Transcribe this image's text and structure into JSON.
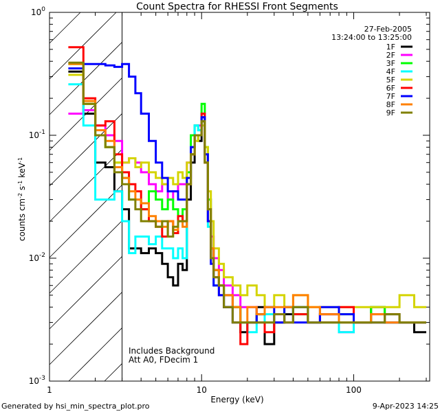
{
  "chart_data": {
    "type": "line",
    "title": "Count Spectra for RHESSI Front Segments",
    "xlabel": "Energy (keV)",
    "ylabel": "counts cm-2 s-1 keV-1",
    "xscale": "log",
    "yscale": "log",
    "xlim": [
      1,
      316
    ],
    "ylim": [
      0.001,
      1
    ],
    "x_ticks": [
      {
        "value": 1,
        "label": "1"
      },
      {
        "value": 10,
        "label": "10"
      },
      {
        "value": 100,
        "label": "100"
      }
    ],
    "y_ticks": [
      {
        "value": 1,
        "base": "10",
        "exp": "0"
      },
      {
        "value": 0.1,
        "base": "10",
        "exp": "-1"
      },
      {
        "value": 0.01,
        "base": "10",
        "exp": "-2"
      },
      {
        "value": 0.001,
        "base": "10",
        "exp": "-3"
      }
    ],
    "legend_header": [
      "27-Feb-2005",
      "13:24:00 to 13:25:00"
    ],
    "legend_placement": "top-right",
    "hatched_region_keV": [
      1,
      3
    ],
    "annotations": [
      "Includes Background",
      "Att A0, FDecim 1"
    ],
    "bin_edges": [
      1.33,
      1.67,
      2,
      2.33,
      2.67,
      3,
      3.33,
      3.67,
      4,
      4.5,
      5,
      5.5,
      6,
      6.5,
      7,
      7.5,
      8,
      8.5,
      9,
      9.5,
      10,
      10.5,
      11,
      11.5,
      12,
      13,
      14,
      16,
      18,
      20,
      23,
      26,
      30,
      35,
      40,
      50,
      60,
      80,
      100,
      130,
      160,
      200,
      250,
      300
    ],
    "series": [
      {
        "name": "1F",
        "color": "#000000",
        "values": [
          0.33,
          0.15,
          0.06,
          0.055,
          0.035,
          0.025,
          0.012,
          0.012,
          0.011,
          0.012,
          0.011,
          0.009,
          0.007,
          0.006,
          0.009,
          0.008,
          0.03,
          0.06,
          0.1,
          0.09,
          0.13,
          0.06,
          0.02,
          0.012,
          0.008,
          0.006,
          0.005,
          0.004,
          0.0025,
          0.003,
          0.004,
          0.002,
          0.003,
          0.0035,
          0.004,
          0.003,
          0.0035,
          0.003,
          0.003,
          0.004,
          0.003,
          0.003,
          0.0025
        ]
      },
      {
        "name": "2F",
        "color": "#ff00ff",
        "values": [
          0.15,
          0.16,
          0.12,
          0.1,
          0.09,
          0.06,
          0.065,
          0.06,
          0.05,
          0.04,
          0.035,
          0.04,
          0.03,
          0.035,
          0.04,
          0.04,
          0.06,
          0.08,
          0.12,
          0.12,
          0.14,
          0.07,
          0.03,
          0.015,
          0.01,
          0.008,
          0.006,
          0.005,
          0.004,
          0.004,
          0.003,
          0.003,
          0.0035,
          0.003,
          0.004,
          0.003,
          0.0035,
          0.0025,
          0.003,
          0.0035,
          0.003,
          0.003,
          0.003
        ]
      },
      {
        "name": "3F",
        "color": "#00ff00",
        "values": [
          0.38,
          0.18,
          0.1,
          0.08,
          0.06,
          0.045,
          0.03,
          0.03,
          0.025,
          0.035,
          0.03,
          0.025,
          0.03,
          0.025,
          0.02,
          0.025,
          0.05,
          0.1,
          0.12,
          0.11,
          0.18,
          0.08,
          0.03,
          0.012,
          0.008,
          0.006,
          0.004,
          0.004,
          0.003,
          0.003,
          0.0035,
          0.003,
          0.003,
          0.004,
          0.0035,
          0.003,
          0.003,
          0.0035,
          0.003,
          0.004,
          0.003,
          0.003,
          0.003
        ]
      },
      {
        "name": "4F",
        "color": "#00ffff",
        "values": [
          0.26,
          0.12,
          0.03,
          0.03,
          0.035,
          0.02,
          0.011,
          0.015,
          0.015,
          0.013,
          0.015,
          0.012,
          0.012,
          0.01,
          0.012,
          0.01,
          0.04,
          0.08,
          0.12,
          0.11,
          0.15,
          0.06,
          0.018,
          0.01,
          0.006,
          0.005,
          0.004,
          0.003,
          0.003,
          0.0025,
          0.003,
          0.0035,
          0.003,
          0.003,
          0.004,
          0.003,
          0.003,
          0.0025,
          0.003,
          0.003,
          0.0035,
          0.003,
          0.003
        ]
      },
      {
        "name": "5F",
        "color": "#d4d400",
        "values": [
          0.31,
          0.18,
          0.1,
          0.08,
          0.06,
          0.06,
          0.065,
          0.055,
          0.06,
          0.05,
          0.045,
          0.04,
          0.045,
          0.04,
          0.05,
          0.045,
          0.06,
          0.07,
          0.09,
          0.1,
          0.12,
          0.08,
          0.035,
          0.02,
          0.012,
          0.009,
          0.007,
          0.006,
          0.005,
          0.006,
          0.005,
          0.004,
          0.005,
          0.004,
          0.005,
          0.004,
          0.004,
          0.004,
          0.004,
          0.004,
          0.004,
          0.005,
          0.004
        ]
      },
      {
        "name": "6F",
        "color": "#ff0000",
        "values": [
          0.52,
          0.2,
          0.12,
          0.13,
          0.07,
          0.05,
          0.04,
          0.035,
          0.025,
          0.02,
          0.018,
          0.015,
          0.02,
          0.016,
          0.022,
          0.02,
          0.04,
          0.07,
          0.1,
          0.1,
          0.15,
          0.06,
          0.02,
          0.01,
          0.007,
          0.005,
          0.004,
          0.003,
          0.002,
          0.003,
          0.003,
          0.0025,
          0.003,
          0.003,
          0.0035,
          0.003,
          0.003,
          0.004,
          0.003,
          0.003,
          0.0035,
          0.003,
          0.003
        ]
      },
      {
        "name": "7F",
        "color": "#0000ff",
        "values": [
          0.35,
          0.38,
          0.38,
          0.37,
          0.36,
          0.38,
          0.3,
          0.22,
          0.15,
          0.09,
          0.06,
          0.045,
          0.035,
          0.035,
          0.03,
          0.03,
          0.045,
          0.08,
          0.1,
          0.1,
          0.14,
          0.07,
          0.02,
          0.009,
          0.006,
          0.005,
          0.004,
          0.003,
          0.003,
          0.003,
          0.0035,
          0.004,
          0.003,
          0.004,
          0.003,
          0.003,
          0.004,
          0.0035,
          0.003,
          0.003,
          0.003,
          0.003,
          0.003
        ]
      },
      {
        "name": "8F",
        "color": "#ff8000",
        "values": [
          0.38,
          0.19,
          0.11,
          0.09,
          0.055,
          0.045,
          0.035,
          0.03,
          0.028,
          0.022,
          0.02,
          0.018,
          0.02,
          0.017,
          0.02,
          0.018,
          0.04,
          0.07,
          0.1,
          0.1,
          0.13,
          0.06,
          0.025,
          0.012,
          0.008,
          0.006,
          0.005,
          0.004,
          0.003,
          0.004,
          0.0035,
          0.004,
          0.004,
          0.004,
          0.005,
          0.004,
          0.0035,
          0.003,
          0.003,
          0.0035,
          0.003,
          0.003,
          0.003
        ]
      },
      {
        "name": "9F",
        "color": "#808000",
        "values": [
          0.39,
          0.18,
          0.1,
          0.08,
          0.05,
          0.04,
          0.03,
          0.025,
          0.02,
          0.02,
          0.018,
          0.02,
          0.015,
          0.018,
          0.02,
          0.02,
          0.04,
          0.07,
          0.1,
          0.1,
          0.13,
          0.06,
          0.025,
          0.01,
          0.007,
          0.006,
          0.004,
          0.003,
          0.003,
          0.003,
          0.003,
          0.003,
          0.0035,
          0.003,
          0.004,
          0.003,
          0.003,
          0.003,
          0.003,
          0.003,
          0.0035,
          0.003,
          0.003
        ]
      }
    ]
  },
  "footer": {
    "generated_by": "Generated by hsi_min_spectra_plot.pro",
    "timestamp": "9-Apr-2023 14:25"
  }
}
